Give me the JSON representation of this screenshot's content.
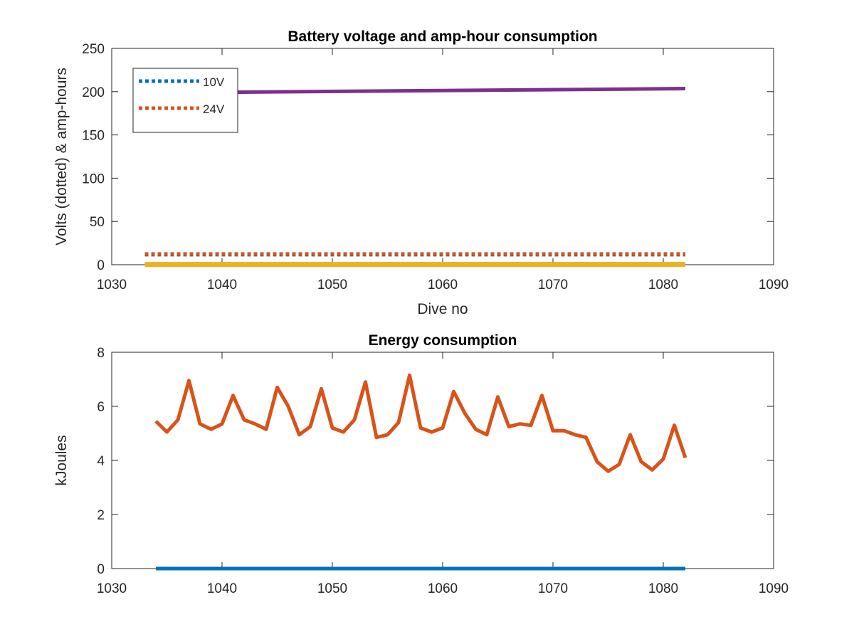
{
  "chart_data": [
    {
      "type": "line",
      "title": "Battery voltage and amp-hour consumption",
      "xlabel": "Dive no",
      "ylabel": "Volts (dotted) & amp-hours",
      "xlim": [
        1030,
        1090
      ],
      "ylim": [
        0,
        250
      ],
      "xticks": [
        1030,
        1040,
        1050,
        1060,
        1070,
        1080,
        1090
      ],
      "yticks": [
        0,
        50,
        100,
        150,
        200,
        250
      ],
      "grid": false,
      "legend_position": "top-left",
      "series": [
        {
          "name": "10V",
          "color": "#0072BD",
          "style": "dotted",
          "in_legend": true,
          "x": [
            1033,
            1082
          ],
          "y": [
            11.6,
            11.6
          ]
        },
        {
          "name": "24V",
          "color": "#D95319",
          "style": "dotted",
          "in_legend": true,
          "x": [
            1033,
            1082
          ],
          "y": [
            12.4,
            12.4
          ]
        },
        {
          "color": "#EDB120",
          "style": "solid",
          "in_legend": false,
          "x": [
            1033,
            1082
          ],
          "y": [
            0.3,
            0.3
          ]
        },
        {
          "color": "#7E2F8E",
          "style": "solid",
          "in_legend": false,
          "x": [
            1033,
            1082
          ],
          "y": [
            198.5,
            203.5
          ]
        }
      ]
    },
    {
      "type": "line",
      "title": "Energy consumption",
      "xlabel": "",
      "ylabel": "kJoules",
      "xlim": [
        1030,
        1090
      ],
      "ylim": [
        0,
        8
      ],
      "xticks": [
        1030,
        1040,
        1050,
        1060,
        1070,
        1080,
        1090
      ],
      "yticks": [
        0,
        2,
        4,
        6,
        8
      ],
      "grid": false,
      "series": [
        {
          "color": "#D95319",
          "style": "solid",
          "x": [
            1034,
            1035,
            1036,
            1037,
            1038,
            1039,
            1040,
            1041,
            1042,
            1043,
            1044,
            1045,
            1046,
            1047,
            1048,
            1049,
            1050,
            1051,
            1052,
            1053,
            1054,
            1055,
            1056,
            1057,
            1058,
            1059,
            1060,
            1061,
            1062,
            1063,
            1064,
            1065,
            1066,
            1067,
            1068,
            1069,
            1070,
            1071,
            1072,
            1073,
            1074,
            1075,
            1076,
            1077,
            1078,
            1079,
            1080,
            1081,
            1082
          ],
          "y": [
            5.45,
            5.05,
            5.5,
            6.95,
            5.35,
            5.15,
            5.35,
            6.4,
            5.5,
            5.35,
            5.15,
            6.7,
            6.0,
            4.95,
            5.25,
            6.65,
            5.2,
            5.05,
            5.5,
            6.9,
            4.85,
            4.95,
            5.4,
            7.15,
            5.2,
            5.05,
            5.2,
            6.55,
            5.75,
            5.15,
            4.95,
            6.35,
            5.25,
            5.35,
            5.3,
            6.4,
            5.1,
            5.1,
            4.95,
            4.85,
            3.95,
            3.6,
            3.85,
            4.95,
            3.95,
            3.65,
            4.05,
            5.3,
            4.1
          ]
        },
        {
          "color": "#0072BD",
          "style": "solid",
          "x": [
            1034,
            1082
          ],
          "y": [
            0,
            0
          ]
        }
      ]
    }
  ]
}
